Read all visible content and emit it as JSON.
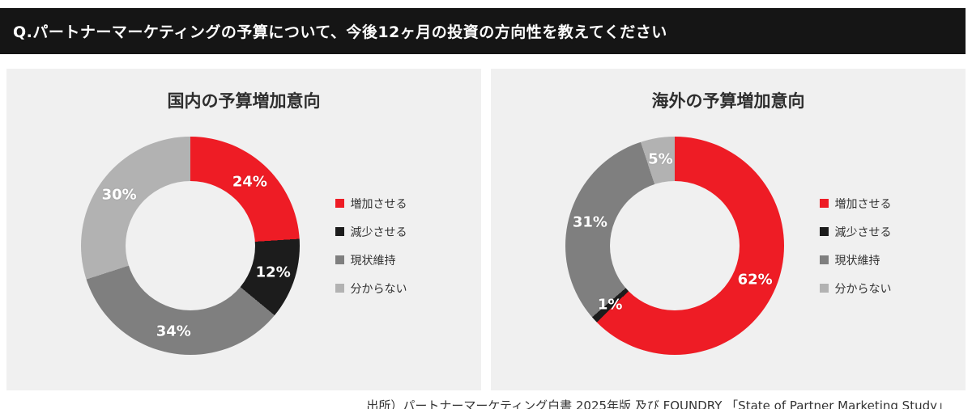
{
  "banner": {
    "question": "Q.パートナーマーケティングの予算について、今後12ヶ月の投資の方向性を教えてください"
  },
  "source": "出所）パートナーマーケティング白書 2025年版 及び FOUNDRY 「State of Partner Marketing Study」",
  "colors": {
    "increase_red": "#ee1c25",
    "decrease_black": "#1c1c1c",
    "keep_gray": "#7f7f7f",
    "unknown_lightgray": "#b2b2b2",
    "panel_bg": "#f0f0f0",
    "banner_bg": "#151515"
  },
  "chart_data": [
    {
      "type": "pie",
      "donut": true,
      "title": "国内の予算増加意向",
      "labels": [
        "増加させる",
        "減少させる",
        "現状維持",
        "分からない"
      ],
      "values": [
        24,
        12,
        34,
        30
      ],
      "value_labels": [
        "24%",
        "12%",
        "34%",
        "30%"
      ],
      "colors": [
        "#ee1c25",
        "#1c1c1c",
        "#7f7f7f",
        "#b2b2b2"
      ],
      "start_angle_deg": 0,
      "legend_position": "right"
    },
    {
      "type": "pie",
      "donut": true,
      "title": "海外の予算増加意向",
      "labels": [
        "増加させる",
        "減少させる",
        "現状維持",
        "分からない"
      ],
      "values": [
        62,
        1,
        31,
        5
      ],
      "value_labels": [
        "62%",
        "1%",
        "31%",
        "5%"
      ],
      "colors": [
        "#ee1c25",
        "#1c1c1c",
        "#7f7f7f",
        "#b2b2b2"
      ],
      "start_angle_deg": 0,
      "legend_position": "right"
    }
  ]
}
